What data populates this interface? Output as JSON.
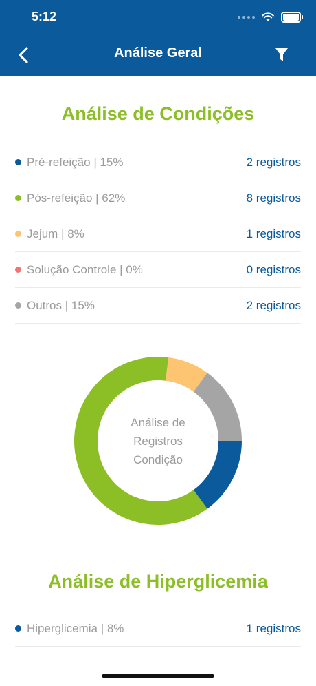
{
  "status_bar": {
    "time": "5:12"
  },
  "header": {
    "title": "Análise Geral",
    "back_icon": "chevron-left-icon",
    "filter_icon": "filter-icon"
  },
  "conditions": {
    "title": "Análise de Condições",
    "items": [
      {
        "label": "Pré-refeição | 15%",
        "count": "2 registros",
        "color": "#0a5a9c",
        "percent": 15
      },
      {
        "label": "Pós-refeição | 62%",
        "count": "8 registros",
        "color": "#8cbf26",
        "percent": 62
      },
      {
        "label": "Jejum | 8%",
        "count": "1 registros",
        "color": "#fdc571",
        "percent": 8
      },
      {
        "label": "Solução Controle | 0%",
        "count": "0 registros",
        "color": "#f27474",
        "percent": 0
      },
      {
        "label": "Outros | 15%",
        "count": "2 registros",
        "color": "#a5a5a5",
        "percent": 15
      }
    ]
  },
  "donut": {
    "center_label_lines": [
      "Análise de",
      "Registros",
      "Condição"
    ]
  },
  "hyperglycemia": {
    "title": "Análise de Hiperglicemia",
    "items": [
      {
        "label": "Hiperglicemia | 8%",
        "count": "1 registros",
        "color": "#0a5a9c"
      }
    ]
  }
}
